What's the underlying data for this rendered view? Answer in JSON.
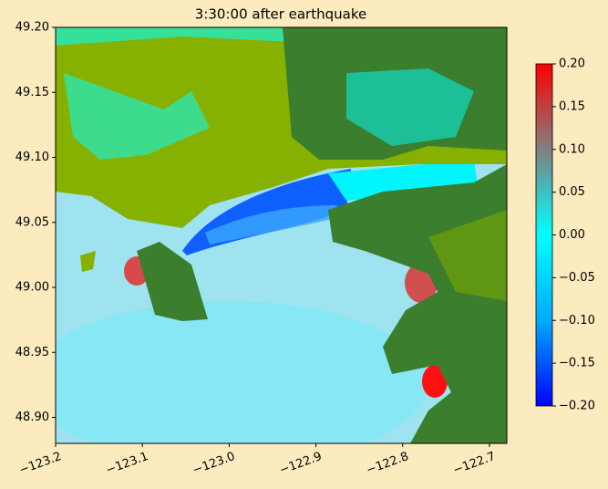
{
  "chart_data": {
    "type": "heatmap",
    "title": "3:30:00 after earthquake",
    "xlim": [
      -123.2,
      -122.68
    ],
    "ylim": [
      48.88,
      49.2
    ],
    "xticks": [
      {
        "value": -123.2,
        "label": "−123.2"
      },
      {
        "value": -123.1,
        "label": "−123.1"
      },
      {
        "value": -123.0,
        "label": "−123.0"
      },
      {
        "value": -122.9,
        "label": "−122.9"
      },
      {
        "value": -122.8,
        "label": "−122.8"
      },
      {
        "value": -122.7,
        "label": "−122.7"
      }
    ],
    "yticks": [
      {
        "value": 48.9,
        "label": "48.90"
      },
      48.95,
      {
        "value": 49.0,
        "label": "49.00"
      },
      49.05,
      {
        "value": 49.1,
        "label": "49.10"
      },
      49.15,
      {
        "value": 49.2,
        "label": "49.20"
      }
    ],
    "colorbar": {
      "range": [
        -0.2,
        0.2
      ],
      "colors": [
        "#0000ff",
        "#00aaff",
        "#00ffff",
        "#808080",
        "#ff0000"
      ],
      "ticks": [
        {
          "value": -0.2,
          "label": "−0.20"
        },
        {
          "value": -0.15,
          "label": "−0.15"
        },
        {
          "value": -0.1,
          "label": "−0.10"
        },
        {
          "value": -0.05,
          "label": "−0.05"
        },
        {
          "value": 0.0,
          "label": "0.00"
        },
        0.05,
        {
          "value": 0.1,
          "label": "0.10"
        },
        0.15,
        {
          "value": 0.2,
          "label": "0.20"
        }
      ]
    }
  }
}
